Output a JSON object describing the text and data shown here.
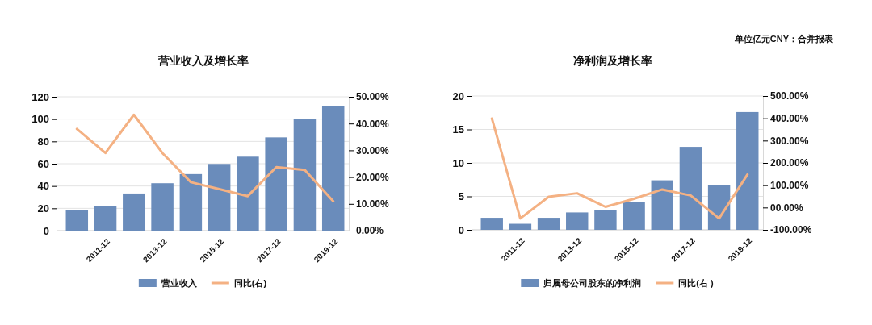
{
  "chart_data": [
    {
      "type": "bar",
      "title": "营业收入及增长率",
      "categories": [
        null,
        "2011-12",
        null,
        "2013-12",
        null,
        "2015-12",
        null,
        "2017-12",
        null,
        "2019-12"
      ],
      "series": [
        {
          "name": "营业收入",
          "color": "#6a8cbb",
          "values": [
            18.5,
            21.8,
            33.3,
            42.5,
            50.7,
            59.8,
            66.3,
            83.6,
            100,
            112
          ]
        },
        {
          "name": "同比(右)",
          "type": "line",
          "axis": "y2",
          "color": "#f4b183",
          "values": [
            38,
            29,
            43.3,
            29,
            18.1,
            15.5,
            12.9,
            23.7,
            22.7,
            11
          ]
        }
      ],
      "ylim": [
        0,
        120
      ],
      "yticks": [
        0,
        20,
        40,
        60,
        80,
        100,
        120
      ],
      "y2lim": [
        0,
        50
      ],
      "y2ticks": [
        {
          "value": 0,
          "label": "0.00%"
        },
        {
          "value": 10,
          "label": "10.00%"
        },
        {
          "value": 20,
          "label": "20.00%"
        },
        {
          "value": 30,
          "label": "30.00%"
        },
        {
          "value": 40,
          "label": "40.00%"
        },
        {
          "value": 50,
          "label": "50.00%"
        }
      ],
      "grid": "y",
      "legend": "bottom"
    },
    {
      "type": "bar",
      "title": "净利润及增长率",
      "categories": [
        null,
        "2011-12",
        null,
        "2013-12",
        null,
        "2015-12",
        null,
        "2017-12",
        null,
        "2019-12"
      ],
      "series": [
        {
          "name": "归属母公司股东的净利润",
          "color": "#6a8cbb",
          "values": [
            1.8,
            0.9,
            1.8,
            2.6,
            2.9,
            4.1,
            7.4,
            12.4,
            6.7,
            17.6
          ]
        },
        {
          "name": "同比(右 )",
          "type": "line",
          "axis": "y2",
          "color": "#f4b183",
          "values": [
            399,
            -49,
            48,
            64,
            3,
            39,
            81,
            54,
            -49,
            148
          ]
        }
      ],
      "ylim": [
        0,
        20
      ],
      "yticks": [
        0,
        5,
        10,
        15,
        20
      ],
      "y2lim": [
        -100,
        500
      ],
      "y2ticks": [
        {
          "value": -100,
          "label": "-100.00%"
        },
        {
          "value": 0,
          "label": "00.00%"
        },
        {
          "value": 100,
          "label": "100.00%"
        },
        {
          "value": 200,
          "label": "200.00%"
        },
        {
          "value": 300,
          "label": "300.00%"
        },
        {
          "value": 400,
          "label": "400.00%"
        },
        {
          "value": 500,
          "label": "500.00%"
        }
      ],
      "grid": "y",
      "legend": "bottom",
      "annotations": [
        "单位亿元CNY：合并报表"
      ]
    }
  ]
}
